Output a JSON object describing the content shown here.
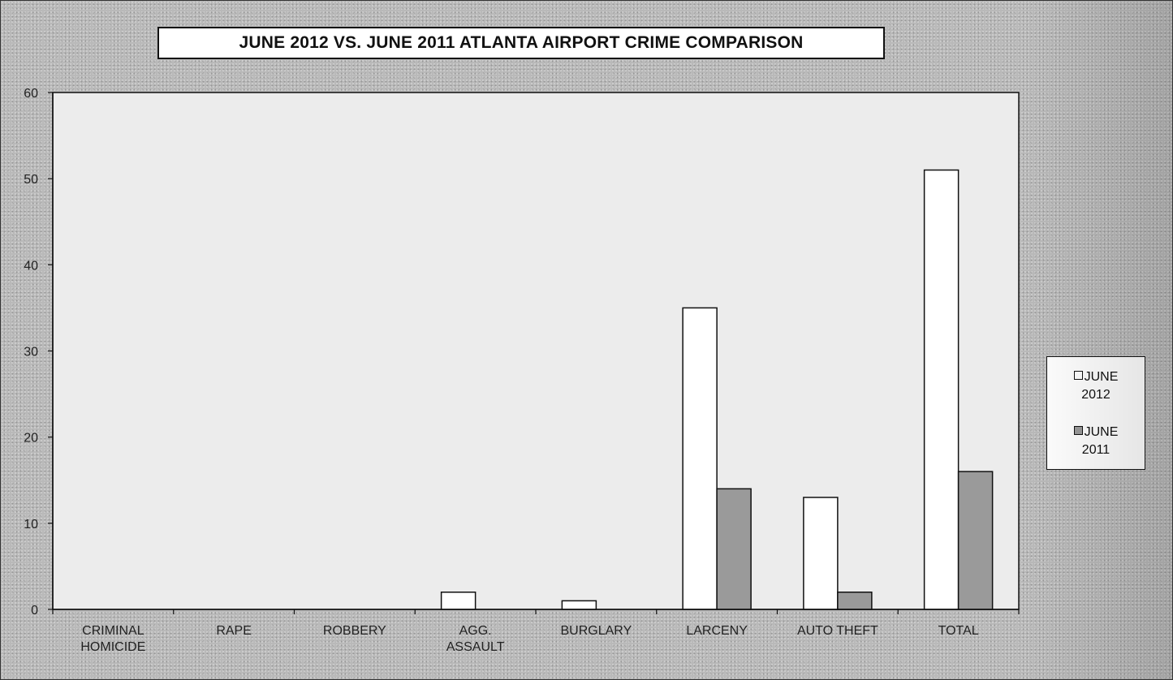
{
  "chart_data": {
    "type": "bar",
    "title": "JUNE 2012 VS. JUNE 2011 ATLANTA AIRPORT CRIME COMPARISON",
    "xlabel": "",
    "ylabel": "",
    "categories": [
      [
        "CRIMINAL",
        "HOMICIDE"
      ],
      [
        "RAPE"
      ],
      [
        "ROBBERY"
      ],
      [
        "AGG.",
        "ASSAULT"
      ],
      [
        "BURGLARY"
      ],
      [
        "LARCENY"
      ],
      [
        "AUTO THEFT"
      ],
      [
        "TOTAL"
      ]
    ],
    "series": [
      {
        "name": "JUNE 2012",
        "values": [
          0,
          0,
          0,
          2,
          1,
          35,
          13,
          51
        ],
        "color": "#ffffff"
      },
      {
        "name": "JUNE 2011",
        "values": [
          0,
          0,
          0,
          0,
          0,
          14,
          2,
          16
        ],
        "color": "#9a9a9a"
      }
    ],
    "ylim": [
      0,
      60
    ],
    "yticks": [
      0,
      10,
      20,
      30,
      40,
      50,
      60
    ],
    "grid": false,
    "legend_position": "right",
    "plot_background": "#ececec",
    "outer_background": "#b9b9b9"
  },
  "legend": {
    "items": [
      {
        "line1": "JUNE",
        "line2": "2012"
      },
      {
        "line1": "JUNE",
        "line2": "2011"
      }
    ]
  }
}
